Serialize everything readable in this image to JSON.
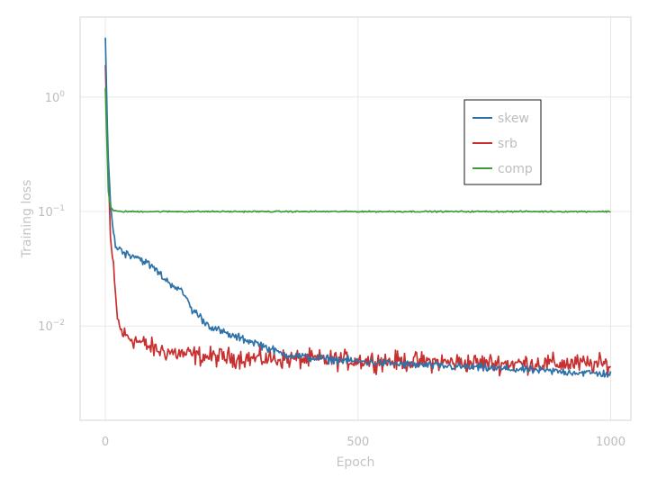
{
  "chart_data": {
    "type": "line",
    "title": "",
    "xlabel": "Epoch",
    "ylabel": "Training loss",
    "xlim": [
      -50,
      1040
    ],
    "ylim": [
      0.0015,
      5
    ],
    "yscale": "log",
    "xticks": [
      0,
      500,
      1000
    ],
    "xtick_labels": [
      "0",
      "500",
      "1000"
    ],
    "yticks": [
      0.01,
      0.1,
      1
    ],
    "ytick_labels": [
      {
        "base": "10",
        "exp": "−2"
      },
      {
        "base": "10",
        "exp": "−1"
      },
      {
        "base": "10",
        "exp": "0"
      }
    ],
    "grid": true,
    "legend": {
      "position": "upper-right"
    },
    "series": [
      {
        "name": "skew",
        "color": "#2e72a8",
        "noise": 0.05,
        "x": [
          0,
          5,
          10,
          15,
          20,
          30,
          40,
          60,
          80,
          100,
          120,
          140,
          160,
          170,
          180,
          200,
          220,
          250,
          300,
          330,
          350,
          380,
          400,
          500,
          600,
          700,
          800,
          900,
          1000
        ],
        "y": [
          3.3,
          0.35,
          0.12,
          0.07,
          0.05,
          0.047,
          0.043,
          0.041,
          0.036,
          0.031,
          0.025,
          0.022,
          0.018,
          0.014,
          0.013,
          0.0105,
          0.0093,
          0.0082,
          0.0071,
          0.0062,
          0.0057,
          0.0055,
          0.0053,
          0.0049,
          0.0046,
          0.0044,
          0.0042,
          0.004,
          0.0038
        ]
      },
      {
        "name": "srb",
        "color": "#c8302f",
        "noise": 0.12,
        "x": [
          0,
          5,
          10,
          15,
          20,
          25,
          30,
          40,
          60,
          80,
          100,
          150,
          200,
          300,
          400,
          500,
          600,
          700,
          800,
          900,
          1000
        ],
        "y": [
          1.9,
          0.3,
          0.06,
          0.035,
          0.018,
          0.011,
          0.0092,
          0.0082,
          0.0075,
          0.0068,
          0.0062,
          0.0057,
          0.0054,
          0.0052,
          0.0051,
          0.005,
          0.0049,
          0.0048,
          0.0047,
          0.0047,
          0.0046
        ]
      },
      {
        "name": "comp",
        "color": "#3a9a3c",
        "noise": 0.008,
        "x": [
          0,
          3,
          6,
          10,
          15,
          20,
          30,
          50,
          100,
          500,
          1000
        ],
        "y": [
          1.2,
          0.4,
          0.15,
          0.11,
          0.103,
          0.101,
          0.1,
          0.1,
          0.1,
          0.1,
          0.1
        ]
      }
    ]
  }
}
